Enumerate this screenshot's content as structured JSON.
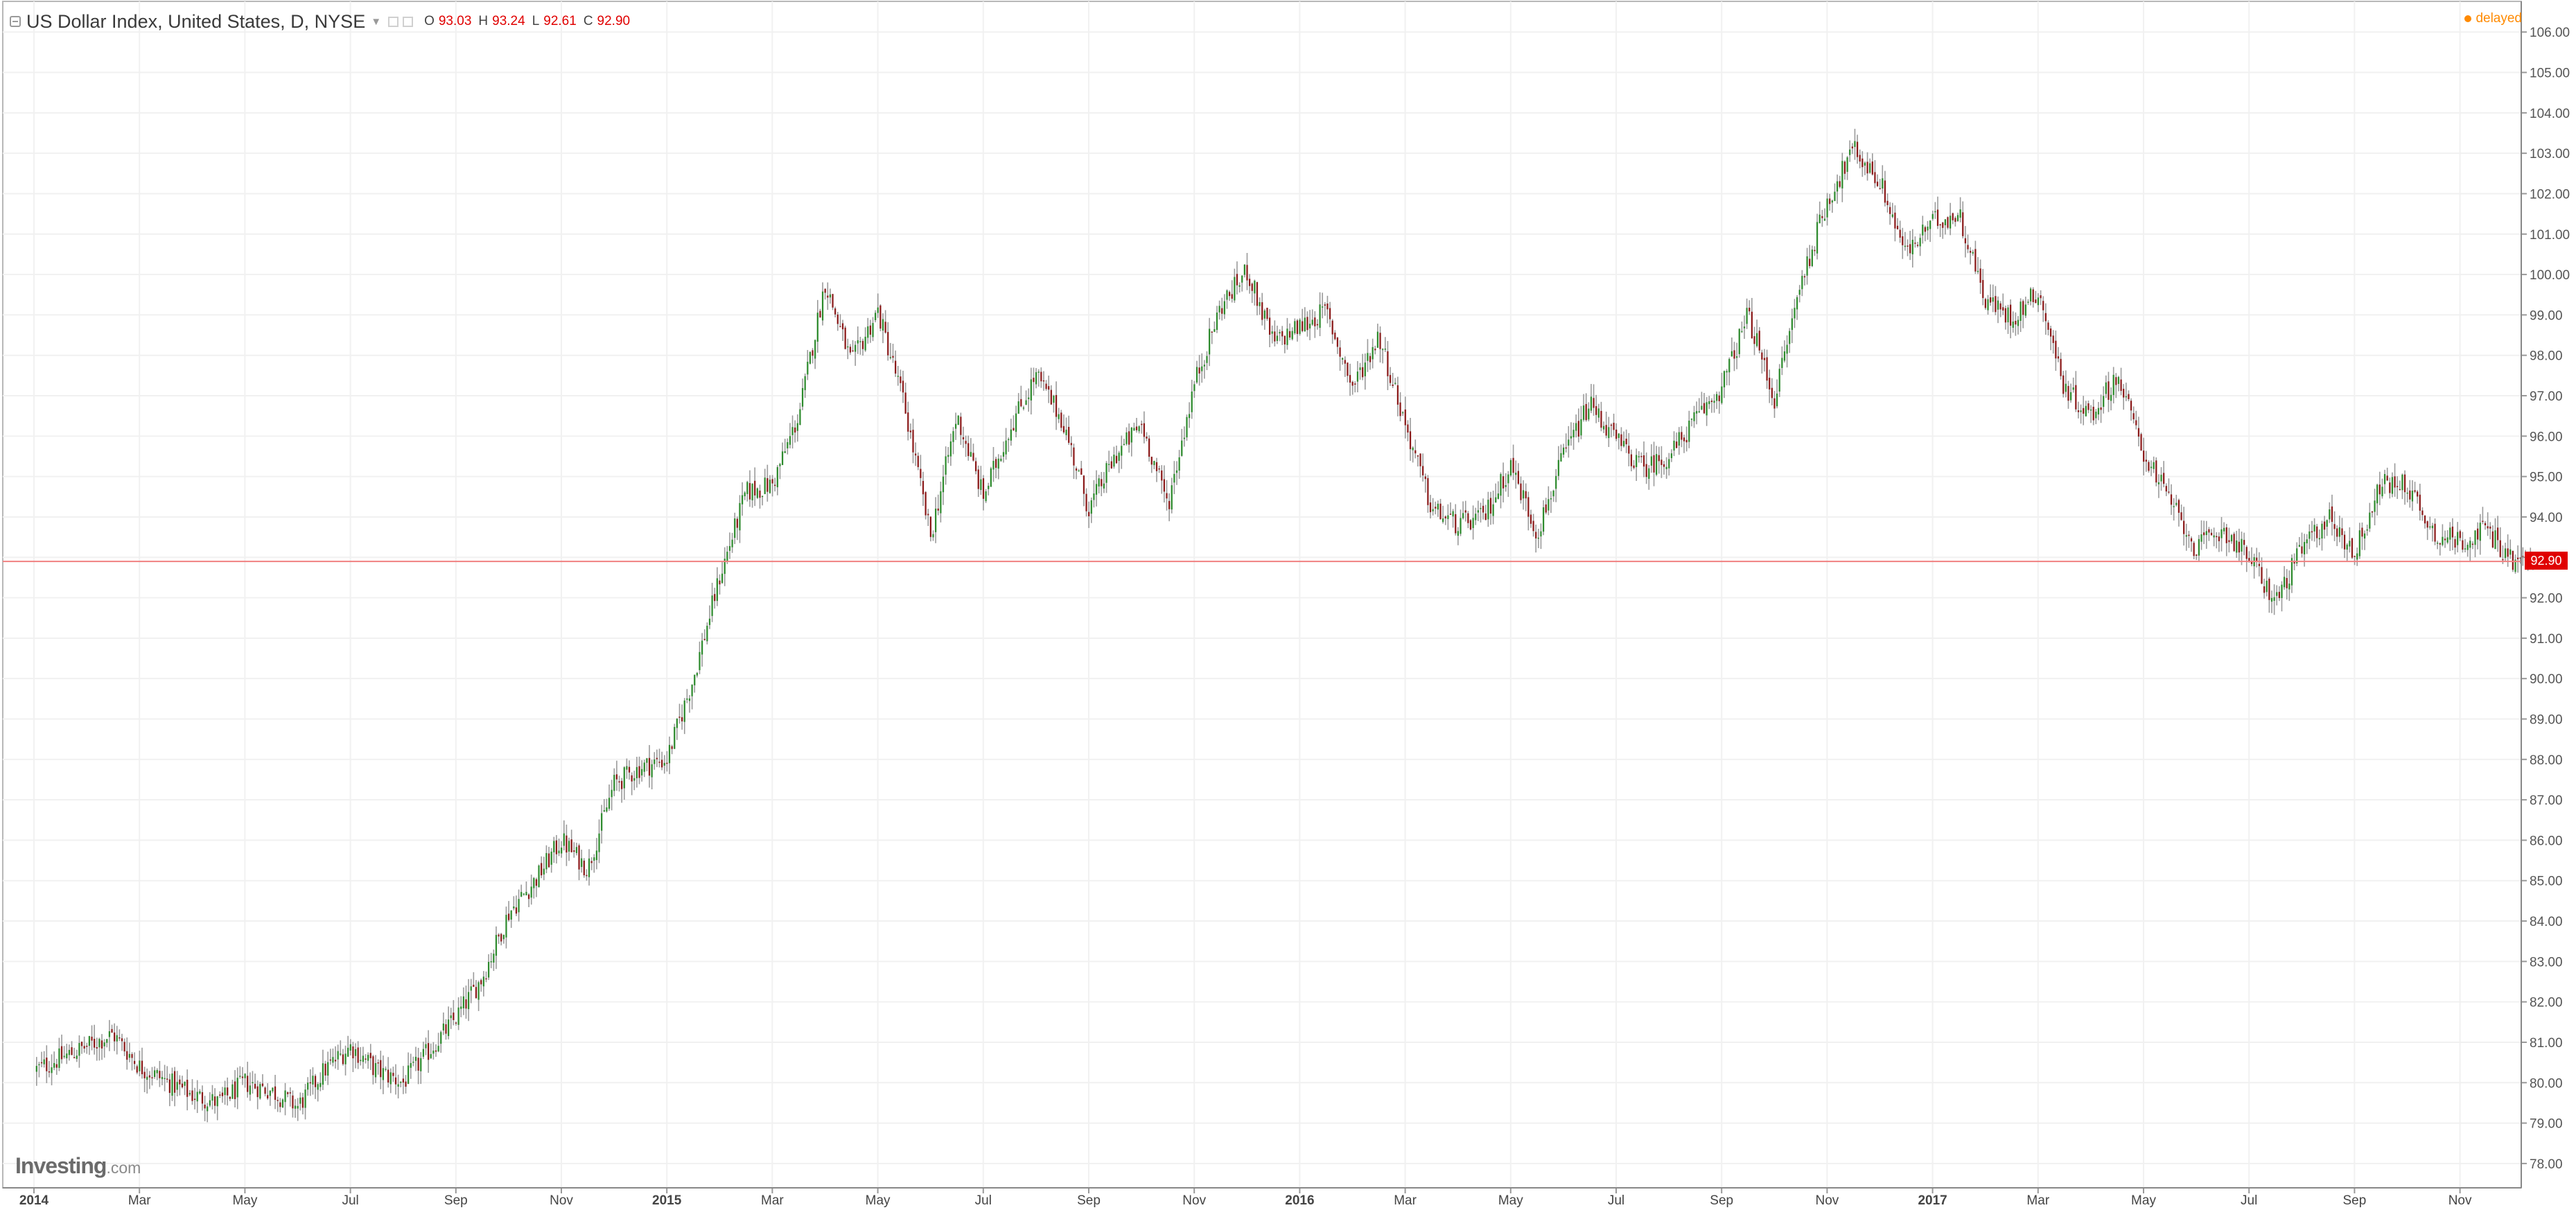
{
  "header": {
    "title": "US Dollar Index, United States, D, NYSE",
    "ohlc": [
      {
        "label": "O",
        "value": "93.03"
      },
      {
        "label": "H",
        "value": "93.24"
      },
      {
        "label": "L",
        "value": "92.61"
      },
      {
        "label": "C",
        "value": "92.90"
      }
    ],
    "status": "delayed"
  },
  "brand": {
    "name": "Investing",
    "suffix": ".com"
  },
  "last_price_label": "92.90",
  "colors": {
    "up": "#2e8b2e",
    "down": "#8b1a1a",
    "wick": "#9a9a9a",
    "last_line": "#f08080",
    "last_tag": "#e00000"
  },
  "chart_data": {
    "type": "candlestick",
    "x_labels": [
      "2014",
      "Mar",
      "May",
      "Jul",
      "Sep",
      "Nov",
      "2015",
      "Mar",
      "May",
      "Jul",
      "Sep",
      "Nov",
      "2016",
      "Mar",
      "May",
      "Jul",
      "Sep",
      "Nov",
      "2017",
      "Mar",
      "May",
      "Jul",
      "Sep",
      "Nov"
    ],
    "y_labels": [
      "78.00",
      "79.00",
      "80.00",
      "81.00",
      "82.00",
      "83.00",
      "84.00",
      "85.00",
      "86.00",
      "87.00",
      "88.00",
      "89.00",
      "90.00",
      "91.00",
      "92.00",
      "93.00",
      "94.00",
      "95.00",
      "96.00",
      "97.00",
      "98.00",
      "99.00",
      "100.00",
      "101.00",
      "102.00",
      "103.00",
      "104.00",
      "105.00",
      "106.00"
    ],
    "ylim": [
      77.7,
      106.3
    ],
    "x_range_months": [
      0,
      47.6
    ],
    "last_price": 92.9,
    "grid": true,
    "close_path": [
      [
        0,
        80.3
      ],
      [
        1,
        80.9
      ],
      [
        1.5,
        81.2
      ],
      [
        2,
        80.4
      ],
      [
        3,
        79.7
      ],
      [
        3.5,
        79.5
      ],
      [
        4,
        80.0
      ],
      [
        4.5,
        79.8
      ],
      [
        5,
        79.4
      ],
      [
        5.5,
        80.3
      ],
      [
        6,
        80.9
      ],
      [
        6.5,
        80.3
      ],
      [
        7,
        80.0
      ],
      [
        7.5,
        80.8
      ],
      [
        8,
        81.6
      ],
      [
        8.5,
        82.6
      ],
      [
        9,
        84.2
      ],
      [
        9.5,
        85.0
      ],
      [
        10,
        86.0
      ],
      [
        10.5,
        85.3
      ],
      [
        11,
        87.4
      ],
      [
        11.5,
        87.8
      ],
      [
        12,
        88.0
      ],
      [
        12.5,
        90.0
      ],
      [
        13,
        92.5
      ],
      [
        13.5,
        94.6
      ],
      [
        14,
        94.8
      ],
      [
        14.5,
        96.5
      ],
      [
        15,
        99.8
      ],
      [
        15.5,
        97.8
      ],
      [
        16,
        99.1
      ],
      [
        16.5,
        96.8
      ],
      [
        17,
        93.5
      ],
      [
        17.5,
        96.5
      ],
      [
        18,
        94.5
      ],
      [
        18.5,
        96.2
      ],
      [
        19,
        97.5
      ],
      [
        19.5,
        96.4
      ],
      [
        20,
        94.2
      ],
      [
        20.5,
        95.5
      ],
      [
        21,
        96.3
      ],
      [
        21.5,
        94.3
      ],
      [
        22,
        97.3
      ],
      [
        22.5,
        99.2
      ],
      [
        23,
        100.1
      ],
      [
        23.5,
        98.3
      ],
      [
        24,
        98.7
      ],
      [
        24.5,
        99.1
      ],
      [
        25,
        97.2
      ],
      [
        25.5,
        98.5
      ],
      [
        26,
        96.3
      ],
      [
        26.5,
        94.2
      ],
      [
        27,
        93.8
      ],
      [
        27.5,
        94.0
      ],
      [
        28,
        95.3
      ],
      [
        28.5,
        93.6
      ],
      [
        29,
        95.5
      ],
      [
        29.5,
        96.8
      ],
      [
        30,
        95.9
      ],
      [
        30.5,
        95.2
      ],
      [
        31,
        95.5
      ],
      [
        31.5,
        96.4
      ],
      [
        32,
        97.2
      ],
      [
        32.5,
        99.0
      ],
      [
        33,
        96.9
      ],
      [
        33.5,
        99.8
      ],
      [
        34,
        101.8
      ],
      [
        34.5,
        103.1
      ],
      [
        35,
        102.3
      ],
      [
        35.5,
        100.5
      ],
      [
        36,
        101.3
      ],
      [
        36.5,
        101.5
      ],
      [
        37,
        99.4
      ],
      [
        37.5,
        98.9
      ],
      [
        38,
        99.6
      ],
      [
        38.5,
        97.2
      ],
      [
        39,
        96.5
      ],
      [
        39.5,
        97.5
      ],
      [
        40,
        95.6
      ],
      [
        40.5,
        94.4
      ],
      [
        41,
        93.2
      ],
      [
        41.5,
        93.7
      ],
      [
        42,
        93.0
      ],
      [
        42.5,
        91.9
      ],
      [
        43,
        93.2
      ],
      [
        43.5,
        94.0
      ],
      [
        44,
        93.1
      ],
      [
        44.5,
        94.8
      ],
      [
        45,
        94.8
      ],
      [
        45.5,
        93.6
      ],
      [
        46,
        93.4
      ],
      [
        46.5,
        93.7
      ],
      [
        47,
        92.9
      ]
    ]
  }
}
